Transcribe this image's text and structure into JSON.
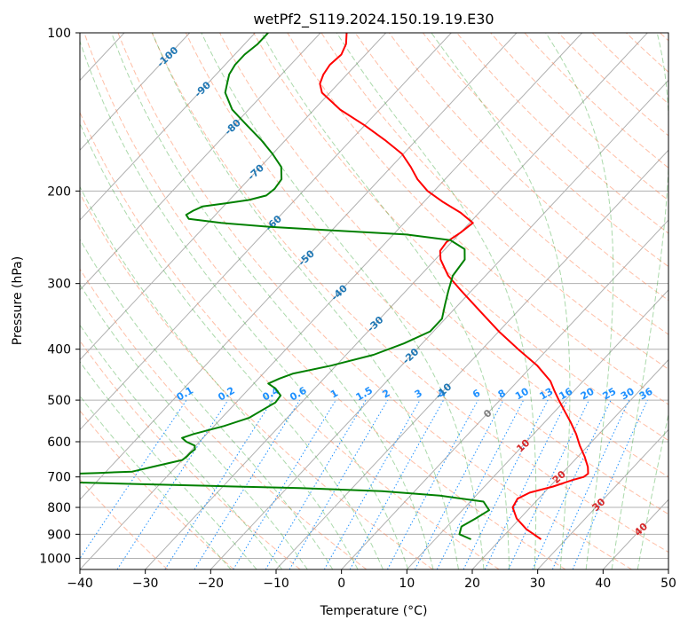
{
  "chart_data": {
    "type": "line",
    "subtype": "skew-t log-p diagram",
    "title": "wetPf2_S119.2024.150.19.19.E30",
    "xlabel": "Temperature (°C)",
    "ylabel": "Pressure (hPa)",
    "xlim": [
      -40,
      50
    ],
    "ylim": [
      1050,
      100
    ],
    "y_scale": "log",
    "x_ticks": [
      "−40",
      "−30",
      "−20",
      "−10",
      "0",
      "10",
      "20",
      "30",
      "40",
      "50"
    ],
    "y_ticks": [
      "100",
      "200",
      "300",
      "400",
      "500",
      "600",
      "700",
      "800",
      "900",
      "1000"
    ],
    "grid": true,
    "colors": {
      "temperature": "#ff0000",
      "dewpoint": "#008000",
      "dry_adiabat": "#ff7f50",
      "moist_adiabat": "#2ca02c",
      "mixing_ratio": "#1e90ff",
      "isotherm": "#808080",
      "isotherm_label": "#1f77b4",
      "isotherm_label_warm": "#d62728"
    },
    "series": [
      {
        "id": "temperature",
        "p": [
          920,
          880,
          840,
          800,
          770,
          750,
          730,
          710,
          700,
          690,
          670,
          640,
          610,
          580,
          550,
          520,
          500,
          480,
          460,
          430,
          400,
          370,
          340,
          310,
          290,
          270,
          260,
          250,
          240,
          230,
          220,
          210,
          200,
          190,
          180,
          170,
          160,
          150,
          140,
          130,
          125,
          120,
          115,
          110,
          105,
          100
        ],
        "t": [
          26.2,
          22.5,
          19.5,
          17.3,
          16.8,
          17.8,
          20.5,
          22.5,
          23.8,
          24.0,
          23.0,
          21.0,
          18.7,
          16.5,
          13.9,
          11.0,
          9.0,
          7.0,
          5.0,
          0.8,
          -4.5,
          -10.0,
          -15.5,
          -21.5,
          -25.7,
          -29.2,
          -30.5,
          -30.8,
          -30.0,
          -29.5,
          -32.8,
          -37.0,
          -41.0,
          -44.2,
          -47.0,
          -50.2,
          -54.8,
          -60.0,
          -66.0,
          -71.2,
          -72.8,
          -73.6,
          -74.0,
          -73.7,
          -74.5,
          -76.0
        ]
      },
      {
        "id": "dewpoint",
        "p": [
          920,
          900,
          870,
          840,
          810,
          780,
          760,
          745,
          735,
          728,
          722,
          716,
          712,
          708,
          704,
          700,
          696,
          692,
          688,
          684,
          680,
          670,
          660,
          650,
          640,
          630,
          620,
          610,
          600,
          590,
          580,
          560,
          540,
          520,
          505,
          490,
          475,
          465,
          455,
          445,
          430,
          410,
          390,
          370,
          350,
          330,
          310,
          290,
          270,
          258,
          248,
          242,
          238,
          234,
          230,
          226,
          222,
          218,
          214,
          211,
          208,
          204,
          198,
          190,
          180,
          170,
          160,
          150,
          140,
          130,
          125,
          120,
          115,
          110,
          105,
          100
        ],
        "t": [
          15.5,
          13.0,
          12.2,
          13.2,
          14.1,
          12.0,
          4.5,
          -5.0,
          -18.0,
          -32.0,
          -44.0,
          -55.0,
          -62.0,
          -67.0,
          -67.6,
          -67.2,
          -63.0,
          -57.0,
          -51.0,
          -46.0,
          -45.3,
          -43.6,
          -41.8,
          -40.0,
          -39.8,
          -39.8,
          -39.6,
          -40.2,
          -42.0,
          -43.2,
          -42.0,
          -38.5,
          -35.8,
          -34.8,
          -34.0,
          -34.2,
          -36.0,
          -37.8,
          -36.8,
          -35.4,
          -30.8,
          -25.8,
          -22.8,
          -20.5,
          -20.5,
          -22.0,
          -23.5,
          -25.0,
          -25.5,
          -27.0,
          -30.5,
          -38.0,
          -49.0,
          -60.0,
          -68.0,
          -73.5,
          -74.5,
          -74.0,
          -73.2,
          -70.0,
          -67.0,
          -65.0,
          -64.7,
          -65.0,
          -66.8,
          -70.0,
          -73.7,
          -78.0,
          -82.5,
          -86.0,
          -87.0,
          -88.0,
          -88.5,
          -88.5,
          -88.0,
          -88.0
        ]
      }
    ],
    "isotherm_labels": [
      "-100",
      "-90",
      "-80",
      "-70",
      "-60",
      "-50",
      "-40",
      "-30",
      "-20",
      "-10",
      "0",
      "10",
      "20",
      "30",
      "40"
    ],
    "mixing_ratio_labels": [
      "0.1",
      "0.2",
      "0.4",
      "0.6",
      "1",
      "1.5",
      "2",
      "3",
      "4",
      "6",
      "8",
      "10",
      "13",
      "16",
      "20",
      "25",
      "30",
      "36"
    ]
  }
}
